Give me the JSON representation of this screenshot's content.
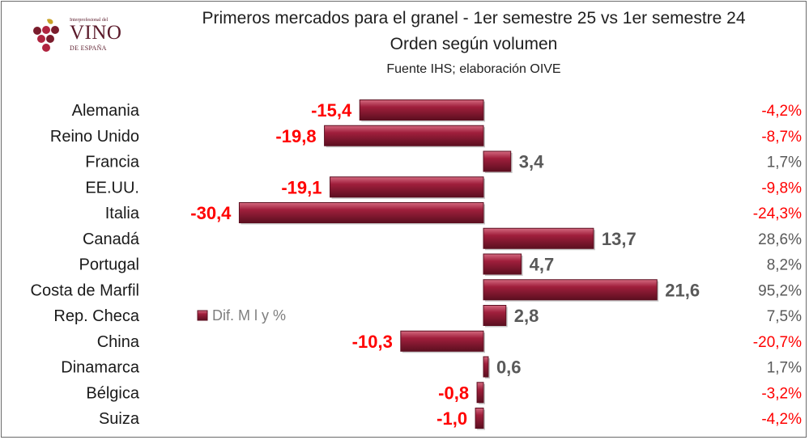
{
  "logo": {
    "top_text": "Interprofesional del",
    "main_text": "VINO",
    "bottom_text": "DE ESPAÑA"
  },
  "colors": {
    "bar_fill": "#a01f3c",
    "bar_dark": "#5c0f20",
    "bar_light": "#cf5b74",
    "negative": "#ff0000",
    "positive": "#595959",
    "label": "#1a1a1a",
    "grape": "#b0243f",
    "grape_dark": "#7a1c2c",
    "leaf": "#c9a227"
  },
  "chart_data": {
    "type": "bar",
    "orientation": "horizontal",
    "title": "Primeros mercados para el granel - 1er semestre 25 vs 1er semestre 24",
    "subtitle": "Orden según volumen",
    "source": "Fuente IHS; elaboración OIVE",
    "categories": [
      "Alemania",
      "Reino Unido",
      "Francia",
      "EE.UU.",
      "Italia",
      "Canadá",
      "Portugal",
      "Costa de Marfil",
      "Rep. Checa",
      "China",
      "Dinamarca",
      "Bélgica",
      "Suiza"
    ],
    "series": [
      {
        "name": "Dif. M l y %",
        "values": [
          -15.4,
          -19.8,
          3.4,
          -19.1,
          -30.4,
          13.7,
          4.7,
          21.6,
          2.8,
          -10.3,
          0.6,
          -0.8,
          -1.0
        ],
        "labels": [
          "-15,4",
          "-19,8",
          "3,4",
          "-19,1",
          "-30,4",
          "13,7",
          "4,7",
          "21,6",
          "2,8",
          "-10,3",
          "0,6",
          "-0,8",
          "-1,0"
        ]
      }
    ],
    "percent_labels": [
      "-4,2%",
      "-8,7%",
      "1,7%",
      "-9,8%",
      "-24,3%",
      "28,6%",
      "8,2%",
      "95,2%",
      "7,5%",
      "-20,7%",
      "1,7%",
      "-3,2%",
      "-4,2%"
    ],
    "percent_values": [
      -4.2,
      -8.7,
      1.7,
      -9.8,
      -24.3,
      28.6,
      8.2,
      95.2,
      7.5,
      -20.7,
      1.7,
      -3.2,
      -4.2
    ],
    "legend": {
      "label": "Dif. M l y %",
      "position": "center-left"
    },
    "grid": false
  }
}
